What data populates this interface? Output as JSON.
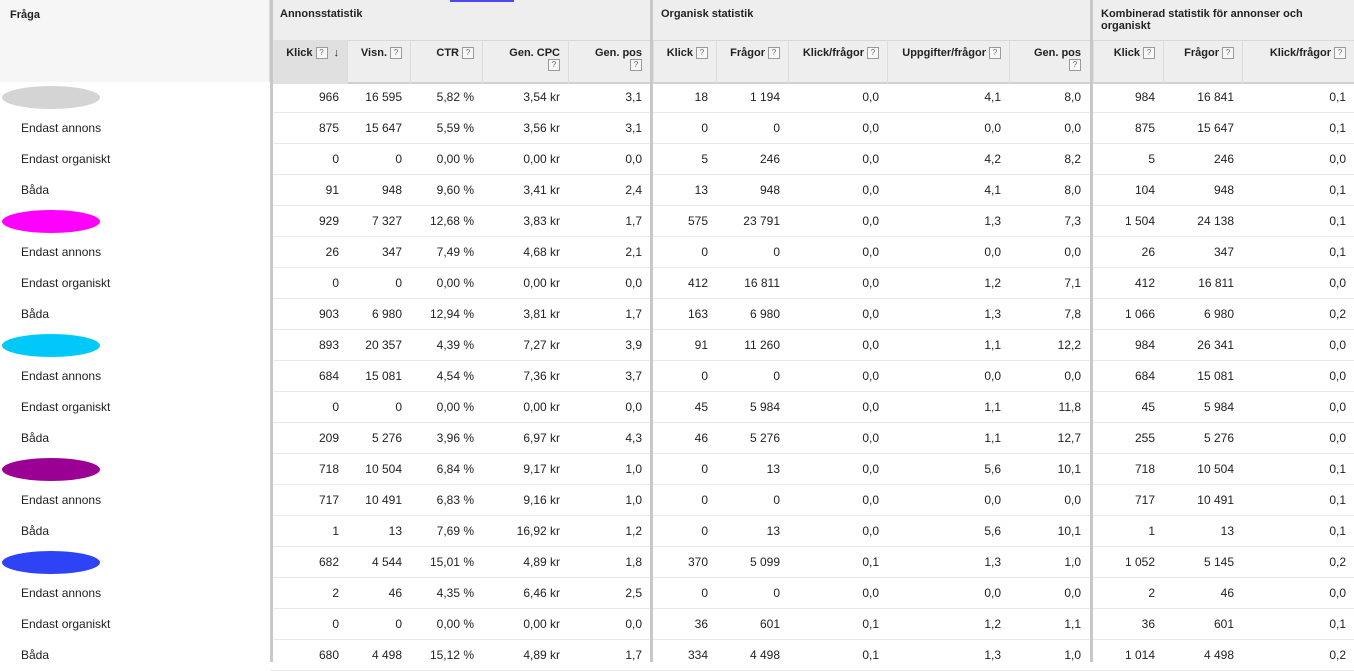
{
  "header": {
    "query_col": "Fråga",
    "groups": {
      "ad": "Annonsstatistik",
      "organic": "Organisk statistik",
      "combined": "Kombinerad statistik för annonser och organiskt"
    },
    "columns": [
      {
        "label": "Klick",
        "sorted": true
      },
      {
        "label": "Visn."
      },
      {
        "label": "CTR"
      },
      {
        "label": "Gen. CPC"
      },
      {
        "label": "Gen. pos"
      },
      {
        "label": "Klick"
      },
      {
        "label": "Frågor"
      },
      {
        "label": "Klick/frågor"
      },
      {
        "label": "Uppgifter/frågor"
      },
      {
        "label": "Gen. pos"
      },
      {
        "label": "Klick"
      },
      {
        "label": "Frågor"
      },
      {
        "label": "Klick/frågor"
      }
    ],
    "help_glyph": "?",
    "sort_glyph": "↓"
  },
  "rows": [
    {
      "type": "query",
      "blob_color": "#d4d4d4",
      "label": "",
      "values": [
        "966",
        "16 595",
        "5,82 %",
        "3,54 kr",
        "3,1",
        "18",
        "1 194",
        "0,0",
        "4,1",
        "8,0",
        "984",
        "16 841",
        "0,1"
      ]
    },
    {
      "type": "sub",
      "label": "Endast annons",
      "values": [
        "875",
        "15 647",
        "5,59 %",
        "3,56 kr",
        "3,1",
        "0",
        "0",
        "0,0",
        "0,0",
        "0,0",
        "875",
        "15 647",
        "0,1"
      ]
    },
    {
      "type": "sub",
      "label": "Endast organiskt",
      "values": [
        "0",
        "0",
        "0,00 %",
        "0,00 kr",
        "0,0",
        "5",
        "246",
        "0,0",
        "4,2",
        "8,2",
        "5",
        "246",
        "0,0"
      ]
    },
    {
      "type": "sub",
      "label": "Båda",
      "values": [
        "91",
        "948",
        "9,60 %",
        "3,41 kr",
        "2,4",
        "13",
        "948",
        "0,0",
        "4,1",
        "8,0",
        "104",
        "948",
        "0,1"
      ]
    },
    {
      "type": "query",
      "blob_color": "#ff00ff",
      "label": "",
      "values": [
        "929",
        "7 327",
        "12,68 %",
        "3,83 kr",
        "1,7",
        "575",
        "23 791",
        "0,0",
        "1,3",
        "7,3",
        "1 504",
        "24 138",
        "0,1"
      ]
    },
    {
      "type": "sub",
      "label": "Endast annons",
      "values": [
        "26",
        "347",
        "7,49 %",
        "4,68 kr",
        "2,1",
        "0",
        "0",
        "0,0",
        "0,0",
        "0,0",
        "26",
        "347",
        "0,1"
      ]
    },
    {
      "type": "sub",
      "label": "Endast organiskt",
      "values": [
        "0",
        "0",
        "0,00 %",
        "0,00 kr",
        "0,0",
        "412",
        "16 811",
        "0,0",
        "1,2",
        "7,1",
        "412",
        "16 811",
        "0,0"
      ]
    },
    {
      "type": "sub",
      "label": "Båda",
      "values": [
        "903",
        "6 980",
        "12,94 %",
        "3,81 kr",
        "1,7",
        "163",
        "6 980",
        "0,0",
        "1,3",
        "7,8",
        "1 066",
        "6 980",
        "0,2"
      ]
    },
    {
      "type": "query",
      "blob_color": "#00c8f8",
      "label": "",
      "values": [
        "893",
        "20 357",
        "4,39 %",
        "7,27 kr",
        "3,9",
        "91",
        "11 260",
        "0,0",
        "1,1",
        "12,2",
        "984",
        "26 341",
        "0,0"
      ]
    },
    {
      "type": "sub",
      "label": "Endast annons",
      "values": [
        "684",
        "15 081",
        "4,54 %",
        "7,36 kr",
        "3,7",
        "0",
        "0",
        "0,0",
        "0,0",
        "0,0",
        "684",
        "15 081",
        "0,0"
      ]
    },
    {
      "type": "sub",
      "label": "Endast organiskt",
      "values": [
        "0",
        "0",
        "0,00 %",
        "0,00 kr",
        "0,0",
        "45",
        "5 984",
        "0,0",
        "1,1",
        "11,8",
        "45",
        "5 984",
        "0,0"
      ]
    },
    {
      "type": "sub",
      "label": "Båda",
      "values": [
        "209",
        "5 276",
        "3,96 %",
        "6,97 kr",
        "4,3",
        "46",
        "5 276",
        "0,0",
        "1,1",
        "12,7",
        "255",
        "5 276",
        "0,0"
      ]
    },
    {
      "type": "query",
      "blob_color": "#9b0094",
      "label": "",
      "values": [
        "718",
        "10 504",
        "6,84 %",
        "9,17 kr",
        "1,0",
        "0",
        "13",
        "0,0",
        "5,6",
        "10,1",
        "718",
        "10 504",
        "0,1"
      ]
    },
    {
      "type": "sub",
      "label": "Endast annons",
      "values": [
        "717",
        "10 491",
        "6,83 %",
        "9,16 kr",
        "1,0",
        "0",
        "0",
        "0,0",
        "0,0",
        "0,0",
        "717",
        "10 491",
        "0,1"
      ]
    },
    {
      "type": "sub",
      "label": "Båda",
      "values": [
        "1",
        "13",
        "7,69 %",
        "16,92 kr",
        "1,2",
        "0",
        "13",
        "0,0",
        "5,6",
        "10,1",
        "1",
        "13",
        "0,1"
      ]
    },
    {
      "type": "query",
      "blob_color": "#2e43f5",
      "label": "",
      "values": [
        "682",
        "4 544",
        "15,01 %",
        "4,89 kr",
        "1,8",
        "370",
        "5 099",
        "0,1",
        "1,3",
        "1,0",
        "1 052",
        "5 145",
        "0,2"
      ]
    },
    {
      "type": "sub",
      "label": "Endast annons",
      "values": [
        "2",
        "46",
        "4,35 %",
        "6,46 kr",
        "2,5",
        "0",
        "0",
        "0,0",
        "0,0",
        "0,0",
        "2",
        "46",
        "0,0"
      ]
    },
    {
      "type": "sub",
      "label": "Endast organiskt",
      "values": [
        "0",
        "0",
        "0,00 %",
        "0,00 kr",
        "0,0",
        "36",
        "601",
        "0,1",
        "1,2",
        "1,1",
        "36",
        "601",
        "0,1"
      ]
    },
    {
      "type": "sub",
      "label": "Båda",
      "values": [
        "680",
        "4 498",
        "15,12 %",
        "4,89 kr",
        "1,7",
        "334",
        "4 498",
        "0,1",
        "1,3",
        "1,0",
        "1 014",
        "4 498",
        "0,2"
      ]
    }
  ]
}
